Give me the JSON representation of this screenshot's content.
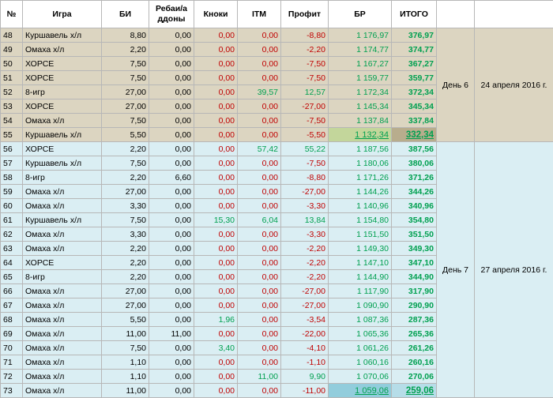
{
  "headers": [
    "№",
    "Игра",
    "БИ",
    "Ребаи/а ддоны",
    "Кноки",
    "ITM",
    "Профит",
    "БР",
    "ИТОГО"
  ],
  "days": [
    {
      "label": "День 6",
      "date": "24 апреля 2016 г."
    },
    {
      "label": "День 7",
      "date": "27 апреля 2016 г."
    }
  ],
  "rows": [
    [
      "48",
      "Куршавель х/л",
      "8,80",
      "0,00",
      "0,00",
      "0,00",
      "-8,80",
      "1 176,97",
      "376,97"
    ],
    [
      "49",
      "Омаха х/л",
      "2,20",
      "0,00",
      "0,00",
      "0,00",
      "-2,20",
      "1 174,77",
      "374,77"
    ],
    [
      "50",
      "ХОРСЕ",
      "7,50",
      "0,00",
      "0,00",
      "0,00",
      "-7,50",
      "1 167,27",
      "367,27"
    ],
    [
      "51",
      "ХОРСЕ",
      "7,50",
      "0,00",
      "0,00",
      "0,00",
      "-7,50",
      "1 159,77",
      "359,77"
    ],
    [
      "52",
      "8-игр",
      "27,00",
      "0,00",
      "0,00",
      "39,57",
      "12,57",
      "1 172,34",
      "372,34"
    ],
    [
      "53",
      "ХОРСЕ",
      "27,00",
      "0,00",
      "0,00",
      "0,00",
      "-27,00",
      "1 145,34",
      "345,34"
    ],
    [
      "54",
      "Омаха х/л",
      "7,50",
      "0,00",
      "0,00",
      "0,00",
      "-7,50",
      "1 137,84",
      "337,84"
    ],
    [
      "55",
      "Куршавель х/л",
      "5,50",
      "0,00",
      "0,00",
      "0,00",
      "-5,50",
      "1 132,34",
      "332,34"
    ],
    [
      "56",
      "ХОРСЕ",
      "2,20",
      "0,00",
      "0,00",
      "57,42",
      "55,22",
      "1 187,56",
      "387,56"
    ],
    [
      "57",
      "Куршавель х/л",
      "7,50",
      "0,00",
      "0,00",
      "0,00",
      "-7,50",
      "1 180,06",
      "380,06"
    ],
    [
      "58",
      "8-игр",
      "2,20",
      "6,60",
      "0,00",
      "0,00",
      "-8,80",
      "1 171,26",
      "371,26"
    ],
    [
      "59",
      "Омаха х/л",
      "27,00",
      "0,00",
      "0,00",
      "0,00",
      "-27,00",
      "1 144,26",
      "344,26"
    ],
    [
      "60",
      "Омаха х/л",
      "3,30",
      "0,00",
      "0,00",
      "0,00",
      "-3,30",
      "1 140,96",
      "340,96"
    ],
    [
      "61",
      "Куршавель х/л",
      "7,50",
      "0,00",
      "15,30",
      "6,04",
      "13,84",
      "1 154,80",
      "354,80"
    ],
    [
      "62",
      "Омаха х/л",
      "3,30",
      "0,00",
      "0,00",
      "0,00",
      "-3,30",
      "1 151,50",
      "351,50"
    ],
    [
      "63",
      "Омаха х/л",
      "2,20",
      "0,00",
      "0,00",
      "0,00",
      "-2,20",
      "1 149,30",
      "349,30"
    ],
    [
      "64",
      "ХОРСЕ",
      "2,20",
      "0,00",
      "0,00",
      "0,00",
      "-2,20",
      "1 147,10",
      "347,10"
    ],
    [
      "65",
      "8-игр",
      "2,20",
      "0,00",
      "0,00",
      "0,00",
      "-2,20",
      "1 144,90",
      "344,90"
    ],
    [
      "66",
      "Омаха х/л",
      "27,00",
      "0,00",
      "0,00",
      "0,00",
      "-27,00",
      "1 117,90",
      "317,90"
    ],
    [
      "67",
      "Омаха х/л",
      "27,00",
      "0,00",
      "0,00",
      "0,00",
      "-27,00",
      "1 090,90",
      "290,90"
    ],
    [
      "68",
      "Омаха х/л",
      "5,50",
      "0,00",
      "1,96",
      "0,00",
      "-3,54",
      "1 087,36",
      "287,36"
    ],
    [
      "69",
      "Омаха х/л",
      "11,00",
      "11,00",
      "0,00",
      "0,00",
      "-22,00",
      "1 065,36",
      "265,36"
    ],
    [
      "70",
      "Омаха х/л",
      "7,50",
      "0,00",
      "3,40",
      "0,00",
      "-4,10",
      "1 061,26",
      "261,26"
    ],
    [
      "71",
      "Омаха х/л",
      "1,10",
      "0,00",
      "0,00",
      "0,00",
      "-1,10",
      "1 060,16",
      "260,16"
    ],
    [
      "72",
      "Омаха х/л",
      "1,10",
      "0,00",
      "0,00",
      "11,00",
      "9,90",
      "1 070,06",
      "270,06"
    ],
    [
      "73",
      "Омаха х/л",
      "11,00",
      "0,00",
      "0,00",
      "0,00",
      "-11,00",
      "1 059,06",
      "259,06"
    ]
  ]
}
